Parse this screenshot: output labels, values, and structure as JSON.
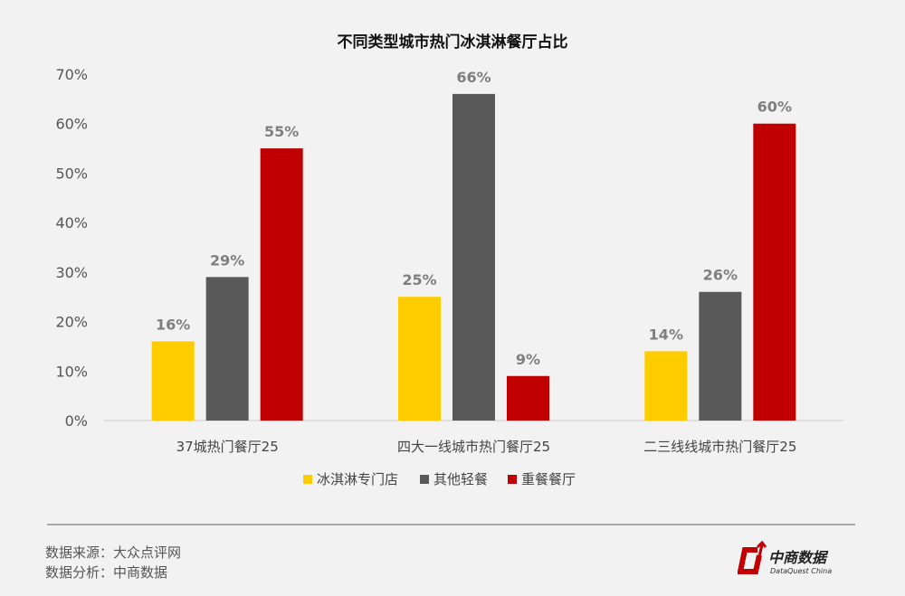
{
  "chart_data": {
    "type": "bar",
    "title": "不同类型城市热门冰淇淋餐厅占比",
    "categories": [
      "37城热门餐厅25",
      "四大一线城市热门餐厅25",
      "二三线线城市热门餐厅25"
    ],
    "series": [
      {
        "name": "冰淇淋专门店",
        "values": [
          16,
          25,
          14
        ],
        "color": "#ffcc00"
      },
      {
        "name": "其他轻餐",
        "values": [
          29,
          66,
          26
        ],
        "color": "#595959"
      },
      {
        "name": "重餐餐厅",
        "values": [
          55,
          9,
          60
        ],
        "color": "#c00000"
      }
    ],
    "ylim": [
      0,
      70
    ],
    "yticks": [
      "0%",
      "10%",
      "20%",
      "30%",
      "40%",
      "50%",
      "60%",
      "70%"
    ],
    "unit": "%",
    "grid": false,
    "legend": "bottom"
  },
  "footer": {
    "source": "数据来源：大众点评网",
    "analysis": "数据分析：中商数据"
  },
  "logo": {
    "name": "中商数据",
    "sub": "DataQuest China",
    "color": "#c00000"
  }
}
